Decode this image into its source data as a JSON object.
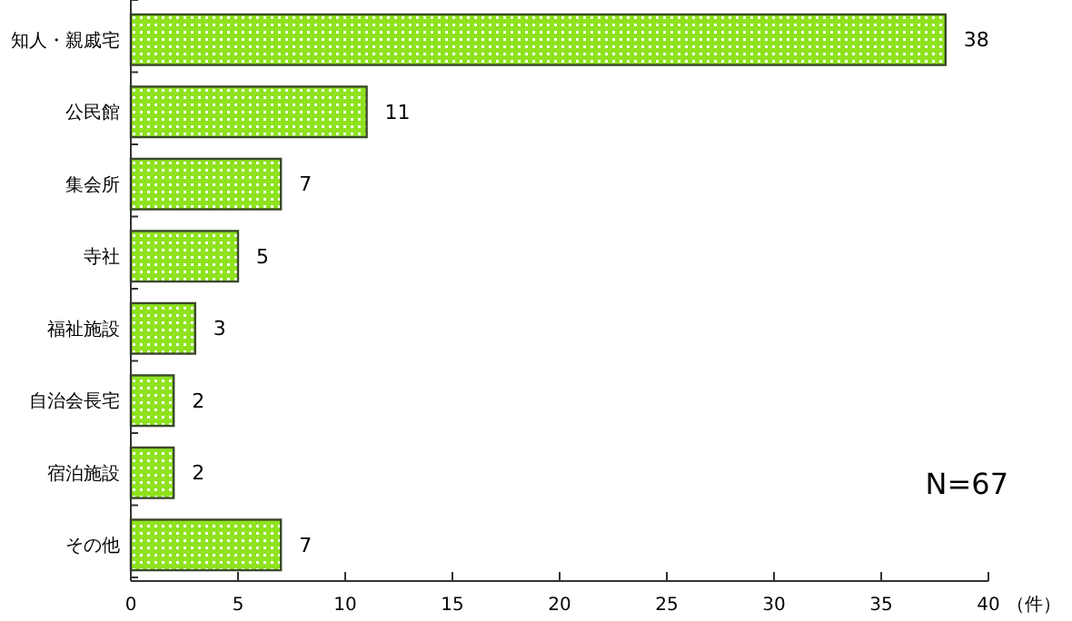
{
  "chart_data": {
    "type": "bar",
    "orientation": "horizontal",
    "categories": [
      "知人・親戚宅",
      "公民館",
      "集会所",
      "寺社",
      "福祉施設",
      "自治会長宅",
      "宿泊施設",
      "その他"
    ],
    "values": [
      38,
      11,
      7,
      5,
      3,
      2,
      2,
      7
    ],
    "color": "#8ee21e",
    "xlim": [
      0,
      40
    ],
    "xticks": [
      0,
      5,
      10,
      15,
      20,
      25,
      30,
      35,
      40
    ],
    "xlabel": "（件）",
    "data_labels": true,
    "grid": false,
    "annotations": [
      "N=67"
    ]
  }
}
